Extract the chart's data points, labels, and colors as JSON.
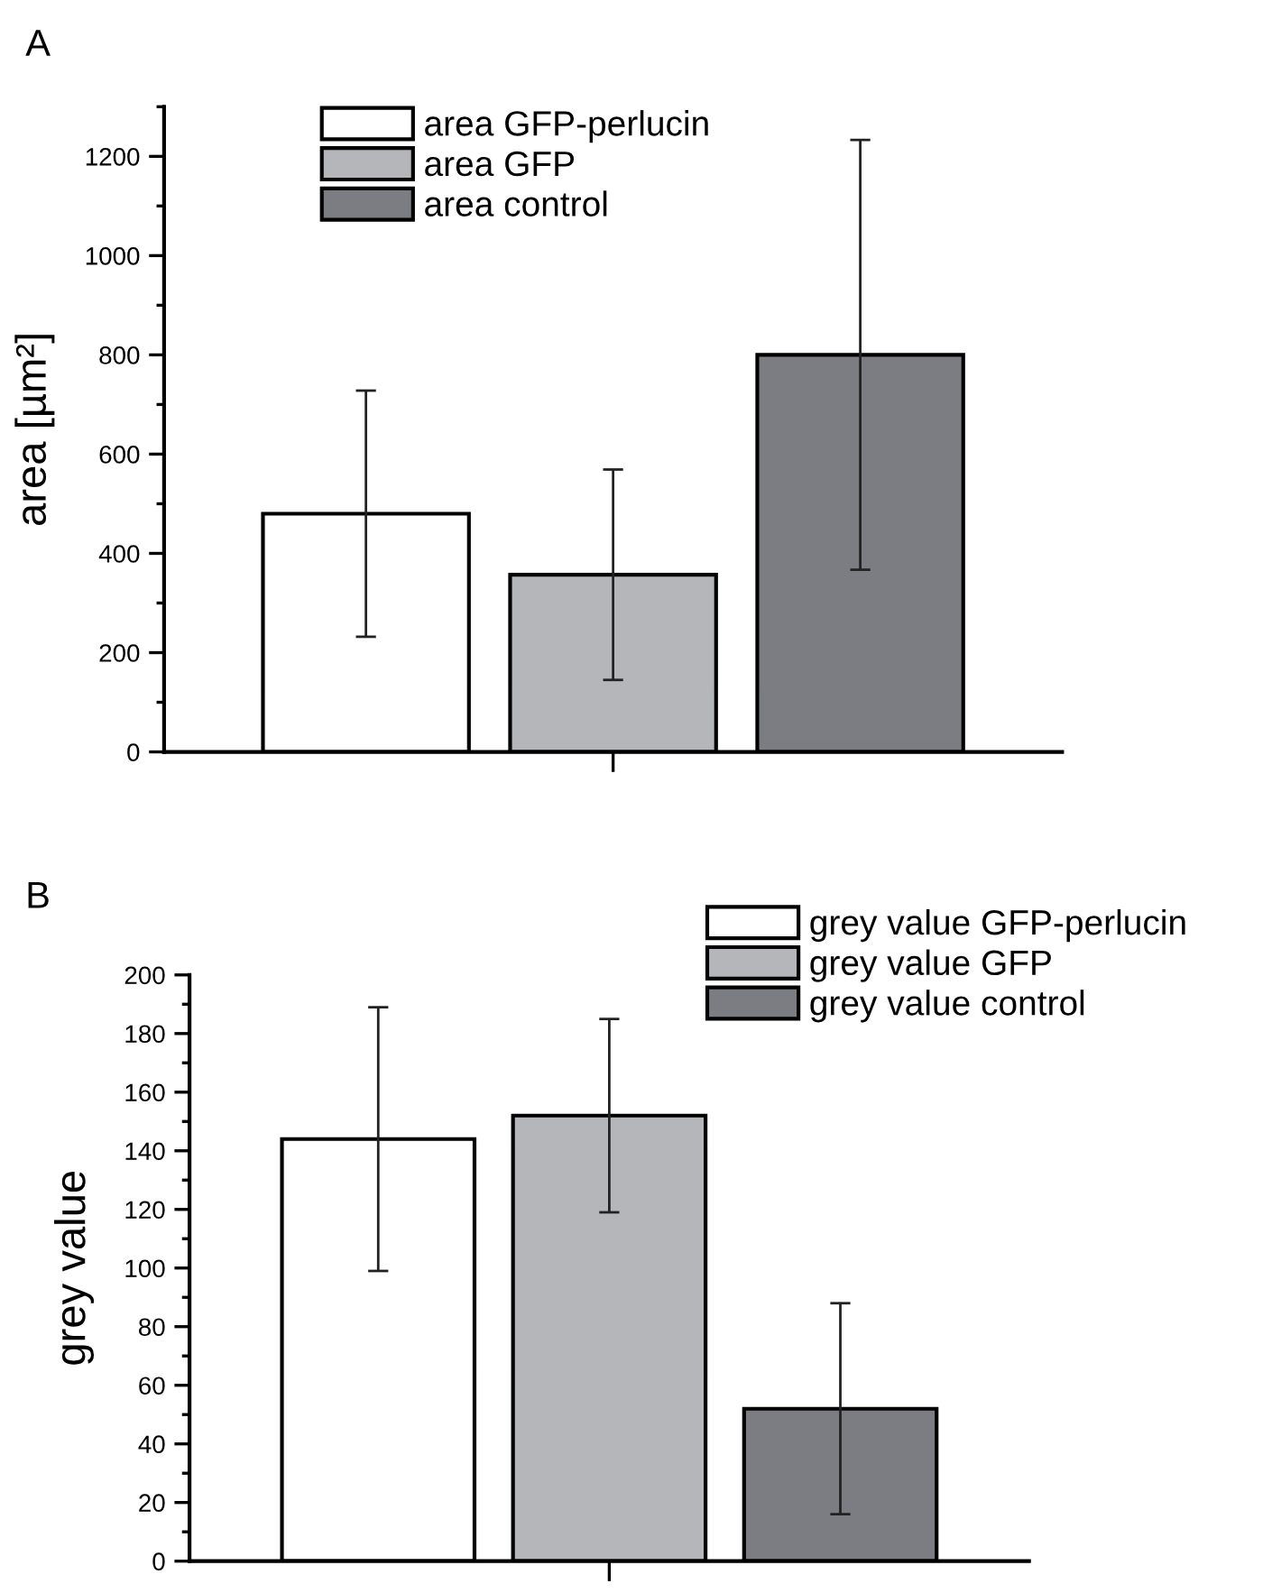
{
  "chart_data": [
    {
      "type": "bar",
      "title": "A",
      "ylabel": "area [µm²]",
      "categories": [
        null
      ],
      "legend": "top left",
      "grid": false,
      "ylim": [
        0,
        1300
      ],
      "yticks": [
        0,
        {
          "value": 100,
          "label": null
        },
        200,
        {
          "value": 300,
          "label": null
        },
        400,
        {
          "value": 500,
          "label": null
        },
        600,
        {
          "value": 700,
          "label": null
        },
        800,
        {
          "value": 900,
          "label": null
        },
        1000,
        {
          "value": 1100,
          "label": null
        },
        1200,
        {
          "value": 1300,
          "label": null
        }
      ],
      "series": [
        {
          "name": "area GFP-perlucin",
          "color": "#ffffff",
          "values": [
            480
          ],
          "errors": [
            248
          ]
        },
        {
          "name": "area GFP",
          "color": "#b5b6ba",
          "values": [
            357
          ],
          "errors": [
            212
          ]
        },
        {
          "name": "area control",
          "color": "#7c7d82",
          "values": [
            800
          ],
          "errors": [
            433
          ]
        }
      ]
    },
    {
      "type": "bar",
      "title": "B",
      "ylabel": "grey value",
      "categories": [
        null
      ],
      "legend": "top right",
      "grid": false,
      "ylim": [
        0,
        200
      ],
      "yticks": [
        0,
        {
          "value": 10,
          "label": null
        },
        20,
        {
          "value": 30,
          "label": null
        },
        40,
        {
          "value": 50,
          "label": null
        },
        60,
        {
          "value": 70,
          "label": null
        },
        80,
        {
          "value": 90,
          "label": null
        },
        100,
        {
          "value": 110,
          "label": null
        },
        120,
        {
          "value": 130,
          "label": null
        },
        140,
        {
          "value": 150,
          "label": null
        },
        160,
        {
          "value": 170,
          "label": null
        },
        180,
        {
          "value": 190,
          "label": null
        },
        200
      ],
      "series": [
        {
          "name": "grey value GFP-perlucin",
          "color": "#ffffff",
          "values": [
            144
          ],
          "errors": [
            45
          ]
        },
        {
          "name": "grey value GFP",
          "color": "#b5b6ba",
          "values": [
            152
          ],
          "errors": [
            33
          ]
        },
        {
          "name": "grey value control",
          "color": "#7c7d82",
          "values": [
            52
          ],
          "errors": [
            36
          ]
        }
      ]
    }
  ]
}
